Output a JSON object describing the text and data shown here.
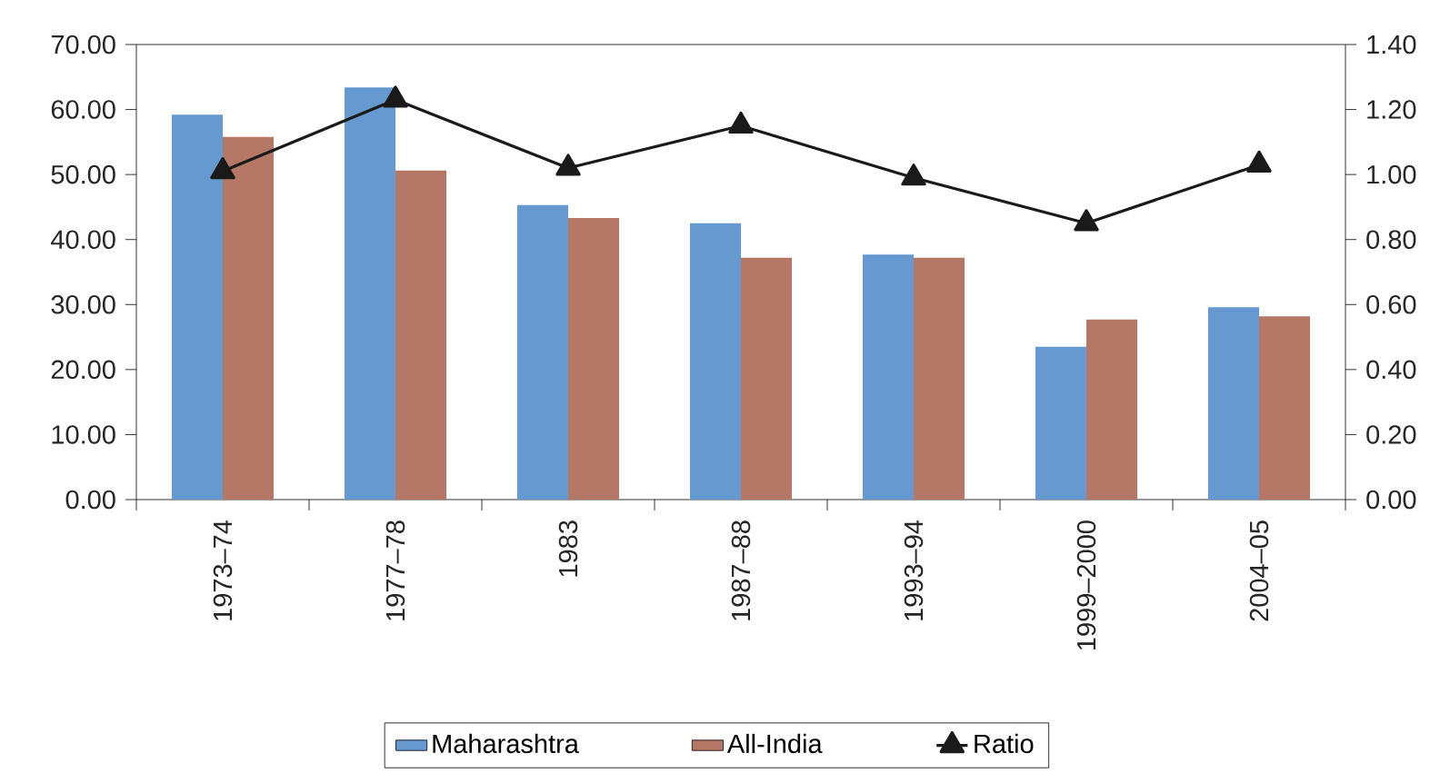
{
  "chart_data": {
    "type": "bar",
    "categories": [
      "1973–74",
      "1977–78",
      "1983",
      "1987–88",
      "1993–94",
      "1999–2000",
      "2004–05"
    ],
    "series": [
      {
        "name": "Maharashtra",
        "color": "#6699d0",
        "values": [
          59.2,
          63.4,
          45.3,
          42.5,
          37.7,
          23.5,
          29.6
        ]
      },
      {
        "name": "All-India",
        "color": "#b57867",
        "values": [
          55.8,
          50.6,
          43.3,
          37.2,
          37.2,
          27.7,
          28.2
        ]
      },
      {
        "name": "Ratio",
        "type": "line",
        "axis": "y2",
        "color": "#1a1a1a",
        "marker": "triangle",
        "values": [
          1.01,
          1.23,
          1.02,
          1.15,
          0.99,
          0.85,
          1.03
        ]
      }
    ],
    "ylim": [
      0,
      70
    ],
    "yticks": [
      {
        "value": 0,
        "label": "0.00"
      },
      {
        "value": 10,
        "label": "10.00"
      },
      {
        "value": 20,
        "label": "20.00"
      },
      {
        "value": 30,
        "label": "30.00"
      },
      {
        "value": 40,
        "label": "40.00"
      },
      {
        "value": 50,
        "label": "50.00"
      },
      {
        "value": 60,
        "label": "60.00"
      },
      {
        "value": 70,
        "label": "70.00"
      }
    ],
    "y2lim": [
      0,
      1.4
    ],
    "y2ticks": [
      {
        "value": 0,
        "label": "0.00"
      },
      {
        "value": 0.2,
        "label": "0.20"
      },
      {
        "value": 0.4,
        "label": "0.40"
      },
      {
        "value": 0.6,
        "label": "0.60"
      },
      {
        "value": 0.8,
        "label": "0.80"
      },
      {
        "value": 1.0,
        "label": "1.00"
      },
      {
        "value": 1.2,
        "label": "1.20"
      },
      {
        "value": 1.4,
        "label": "1.40"
      }
    ],
    "legend": "bottom"
  }
}
